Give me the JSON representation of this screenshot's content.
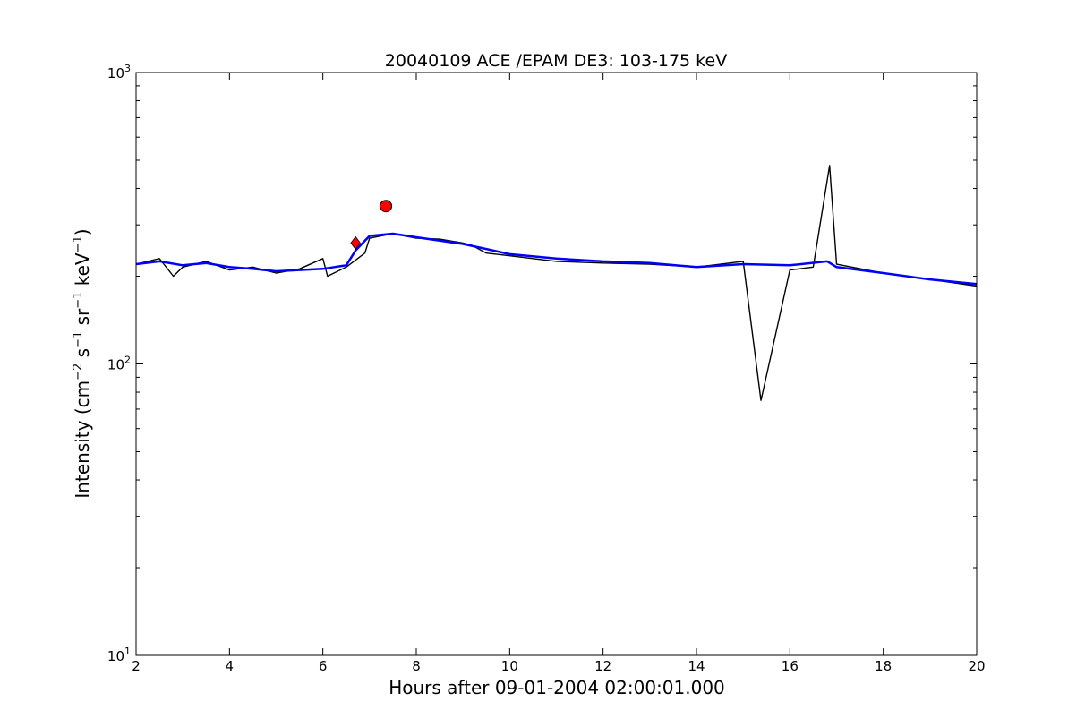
{
  "chart_data": {
    "type": "line",
    "title": "20040109 ACE /EPAM DE3: 103-175 keV",
    "xlabel": "Hours after 09-01-2004 02:00:01.000",
    "ylabel": {
      "prefix": "Intensity (cm",
      "e1": "−2",
      "s": " s",
      "e2": "−1",
      "sr": " sr",
      "e3": "−1",
      "kev": " keV",
      "e4": "−1",
      "suffix": ")"
    },
    "xlim": [
      2,
      20
    ],
    "ylim": [
      10,
      1000
    ],
    "yscale": "log",
    "x_ticks": [
      "2",
      "4",
      "6",
      "8",
      "10",
      "12",
      "14",
      "16",
      "18",
      "20"
    ],
    "y_ticks": [
      {
        "base": "10",
        "exp": "1",
        "value": 10
      },
      {
        "base": "10",
        "exp": "2",
        "value": 100
      },
      {
        "base": "10",
        "exp": "3",
        "value": 1000
      }
    ],
    "grid": false,
    "colors": {
      "raw": "#000000",
      "smoothed": "#0000ff",
      "marker": "#ff0000"
    },
    "series": [
      {
        "key": "raw",
        "x": [
          2.0,
          2.5,
          2.8,
          3.0,
          3.5,
          4.0,
          4.5,
          5.0,
          5.5,
          6.0,
          6.1,
          6.5,
          6.9,
          7.0,
          7.5,
          8.0,
          8.5,
          9.0,
          9.2,
          9.5,
          10.0,
          11.0,
          12.0,
          13.0,
          14.0,
          15.0,
          15.38,
          15.42,
          16.0,
          16.5,
          16.85,
          17.0,
          18.0,
          19.0,
          20.0
        ],
        "y": [
          220,
          230,
          200,
          215,
          225,
          210,
          215,
          205,
          212,
          230,
          200,
          215,
          240,
          270,
          280,
          270,
          268,
          260,
          255,
          240,
          235,
          225,
          222,
          220,
          215,
          225,
          75,
          80,
          210,
          215,
          480,
          220,
          205,
          195,
          185
        ]
      },
      {
        "key": "smoothed",
        "x": [
          2.0,
          2.5,
          3.0,
          3.5,
          4.0,
          4.5,
          5.0,
          5.5,
          6.0,
          6.5,
          6.7,
          7.0,
          7.5,
          8.0,
          8.5,
          9.0,
          9.5,
          10.0,
          11.0,
          12.0,
          13.0,
          14.0,
          15.0,
          16.0,
          16.8,
          17.0,
          18.0,
          19.0,
          20.0
        ],
        "y": [
          220,
          225,
          218,
          222,
          215,
          212,
          208,
          210,
          212,
          218,
          245,
          275,
          280,
          272,
          265,
          258,
          248,
          238,
          230,
          225,
          222,
          215,
          220,
          218,
          225,
          215,
          205,
          195,
          188
        ]
      }
    ],
    "markers": [
      {
        "shape": "diamond",
        "x": 6.7,
        "y": 260
      },
      {
        "shape": "circle",
        "x": 7.35,
        "y": 348
      }
    ]
  }
}
